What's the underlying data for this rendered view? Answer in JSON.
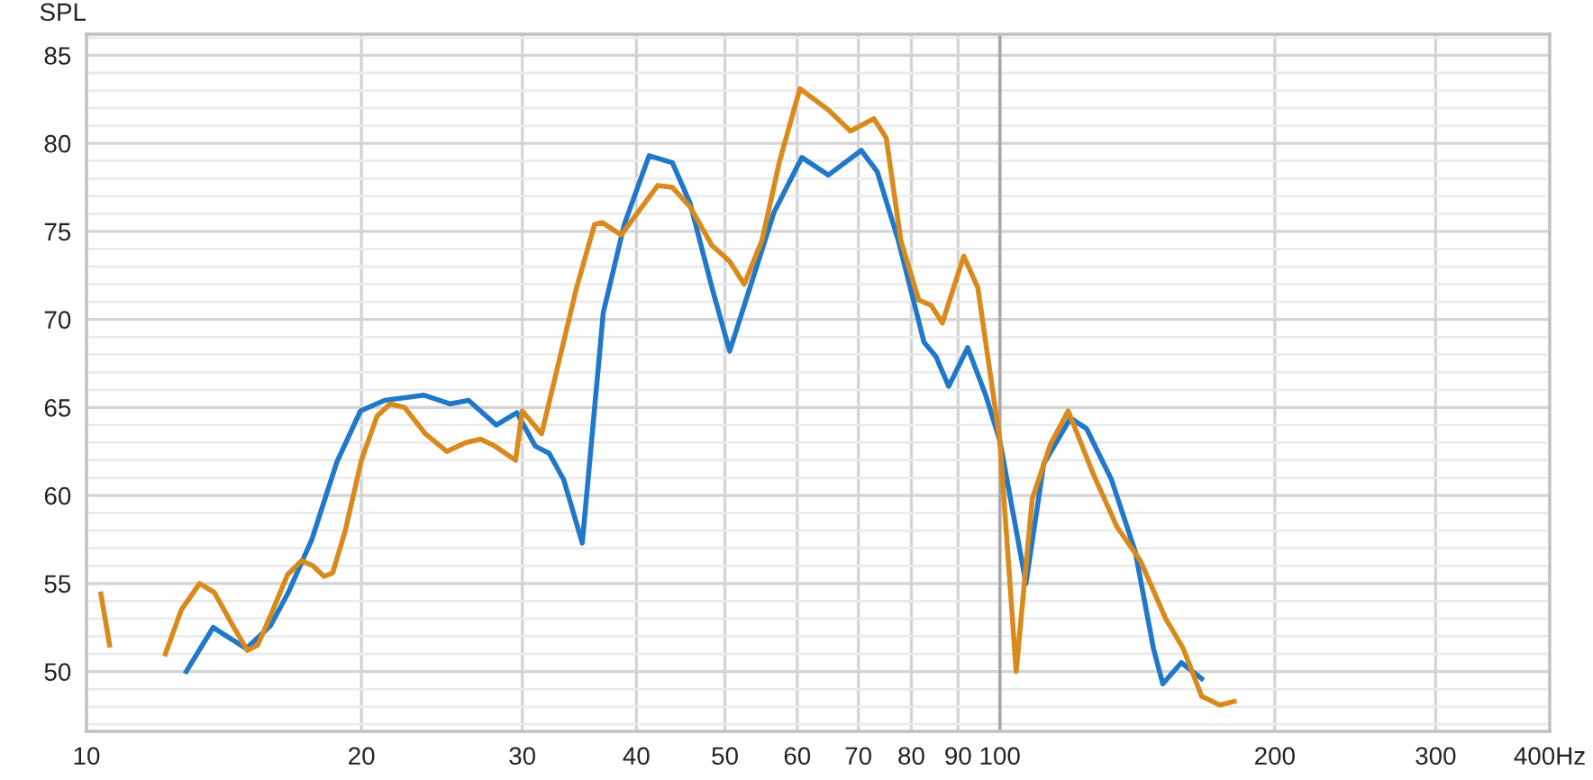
{
  "chart_data": {
    "type": "line",
    "ylabel": "SPL",
    "log": "x",
    "xlim": [
      10,
      400
    ],
    "ylim": [
      46.6,
      86.2
    ],
    "xticks": [
      10,
      20,
      30,
      40,
      50,
      60,
      70,
      80,
      90,
      100,
      200,
      300,
      {
        "value": 400,
        "label": "400Hz"
      }
    ],
    "yticks": [
      {
        "value": 47,
        "label": null
      },
      {
        "value": 48,
        "label": null
      },
      {
        "value": 49,
        "label": null
      },
      50,
      {
        "value": 51,
        "label": null
      },
      {
        "value": 52,
        "label": null
      },
      {
        "value": 53,
        "label": null
      },
      {
        "value": 54,
        "label": null
      },
      55,
      {
        "value": 56,
        "label": null
      },
      {
        "value": 57,
        "label": null
      },
      {
        "value": 58,
        "label": null
      },
      {
        "value": 59,
        "label": null
      },
      60,
      {
        "value": 61,
        "label": null
      },
      {
        "value": 62,
        "label": null
      },
      {
        "value": 63,
        "label": null
      },
      {
        "value": 64,
        "label": null
      },
      65,
      {
        "value": 66,
        "label": null
      },
      {
        "value": 67,
        "label": null
      },
      {
        "value": 68,
        "label": null
      },
      {
        "value": 69,
        "label": null
      },
      70,
      {
        "value": 71,
        "label": null
      },
      {
        "value": 72,
        "label": null
      },
      {
        "value": 73,
        "label": null
      },
      {
        "value": 74,
        "label": null
      },
      75,
      {
        "value": 76,
        "label": null
      },
      {
        "value": 77,
        "label": null
      },
      {
        "value": 78,
        "label": null
      },
      {
        "value": 79,
        "label": null
      },
      80,
      {
        "value": 81,
        "label": null
      },
      {
        "value": 82,
        "label": null
      },
      {
        "value": 83,
        "label": null
      },
      {
        "value": 84,
        "label": null
      },
      85,
      {
        "value": 86,
        "label": null
      }
    ],
    "grid": true,
    "legend": false,
    "marker": "none",
    "line_style": "solid",
    "ref_lines": [
      {
        "axis": "x",
        "value": 100,
        "color": "#a8a8a8"
      }
    ],
    "series": [
      {
        "color": "#1f78c9",
        "x": [
          12.86,
          13.76,
          14.96,
          15.9,
          16.6,
          17.65,
          18.8,
          19.95,
          21.2,
          23.4,
          25.0,
          26.2,
          28.1,
          29.6,
          31.0,
          32.1,
          33.3,
          34.9,
          36.8,
          38.8,
          41.3,
          43.8,
          45.8,
          48.4,
          50.6,
          53.4,
          56.6,
          60.7,
          64.9,
          70.5,
          73.4,
          77.4,
          82.6,
          85.1,
          87.9,
          92.2,
          96.5,
          100,
          106.8,
          111.7,
          119.5,
          124.4,
          132.5,
          140.7,
          147.3,
          150.8,
          158,
          166.3
        ],
        "values": [
          50.0,
          52.5,
          51.3,
          52.6,
          54.4,
          57.5,
          61.9,
          64.8,
          65.4,
          65.7,
          65.2,
          65.4,
          64.0,
          64.7,
          62.8,
          62.4,
          60.9,
          57.3,
          70.4,
          75.4,
          79.3,
          78.9,
          76.6,
          71.8,
          68.2,
          72.0,
          76.1,
          79.2,
          78.2,
          79.6,
          78.4,
          74.5,
          68.7,
          67.9,
          66.2,
          68.4,
          65.7,
          63.1,
          55.0,
          61.8,
          64.4,
          63.8,
          60.9,
          56.8,
          51.3,
          49.3,
          50.5,
          49.6
        ]
      },
      {
        "color": "#d98a1c",
        "x": [
          10.37,
          10.6,
          10.9,
          11.2,
          11.6,
          12.2,
          12.7,
          13.3,
          13.8,
          14.5,
          15.0,
          15.4,
          16.0,
          16.6,
          17.2,
          17.7,
          18.2,
          18.6,
          19.2,
          20.0,
          20.8,
          21.5,
          22.3,
          23.5,
          24.8,
          26.0,
          27.0,
          28.0,
          29.5,
          30.0,
          31.5,
          34.4,
          36.0,
          36.7,
          38.5,
          42.2,
          43.8,
          45.8,
          48.4,
          50.6,
          52.5,
          54.9,
          57.4,
          60.4,
          64.9,
          68.6,
          72.8,
          75.1,
          77.9,
          81.5,
          84.1,
          86.5,
          91.3,
          94.6,
          100,
          104.2,
          108.5,
          113.6,
          118.8,
          126.6,
          134.4,
          142.5,
          151.9,
          158.8,
          166.3,
          174.1,
          180.5
        ],
        "values": [
          54.4,
          51.5,
          null,
          null,
          null,
          51.0,
          53.5,
          55.0,
          54.5,
          52.5,
          51.2,
          51.5,
          53.5,
          55.5,
          56.3,
          56.0,
          55.4,
          55.6,
          58.0,
          62.0,
          64.5,
          65.2,
          65.0,
          63.5,
          62.5,
          63.0,
          63.2,
          62.8,
          62.0,
          64.8,
          63.5,
          71.8,
          75.4,
          75.5,
          74.8,
          77.6,
          77.5,
          76.4,
          74.2,
          73.3,
          72.0,
          74.5,
          79.0,
          83.1,
          81.9,
          80.7,
          81.4,
          80.3,
          74.5,
          71.1,
          70.8,
          69.8,
          73.6,
          71.8,
          63.1,
          50.0,
          59.8,
          62.9,
          64.8,
          61.2,
          58.2,
          56.3,
          53.0,
          51.3,
          48.6,
          48.1,
          48.3
        ]
      }
    ]
  }
}
